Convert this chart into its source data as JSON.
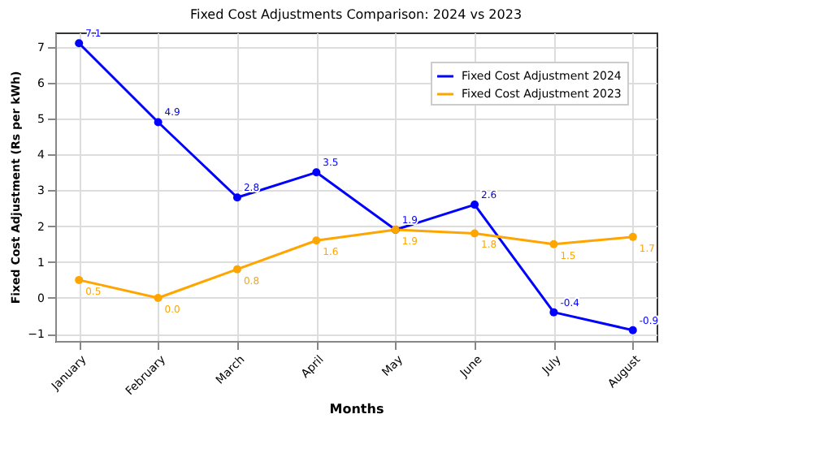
{
  "chart_data": {
    "type": "line",
    "title": "Fixed Cost Adjustments Comparison: 2024 vs 2023",
    "xlabel": "Months",
    "ylabel": "Fixed Cost Adjustment (Rs per kWh)",
    "categories": [
      "January",
      "February",
      "March",
      "April",
      "May",
      "June",
      "July",
      "August"
    ],
    "series": [
      {
        "name": "Fixed Cost Adjustment 2024",
        "color": "#0000ff",
        "values": [
          7.1,
          4.9,
          2.8,
          3.5,
          1.9,
          2.6,
          -0.4,
          -0.9
        ],
        "value_labels": [
          "7.1",
          "4.9",
          "2.8",
          "3.5",
          "1.9",
          "2.6",
          "-0.4",
          "-0.9"
        ]
      },
      {
        "name": "Fixed Cost Adjustment 2023",
        "color": "#ffa500",
        "values": [
          0.5,
          0.0,
          0.8,
          1.6,
          1.9,
          1.8,
          1.5,
          1.7
        ],
        "value_labels": [
          "0.5",
          "0.0",
          "0.8",
          "1.6",
          "1.9",
          "1.8",
          "1.5",
          "1.7"
        ]
      }
    ],
    "ylim": [
      -1.2,
      7.4
    ],
    "yticks": [
      -1,
      0,
      1,
      2,
      3,
      4,
      5,
      6,
      7
    ],
    "grid": true,
    "legend": "top right",
    "marker": "circle",
    "line_style": "solid",
    "data_labels": true
  }
}
